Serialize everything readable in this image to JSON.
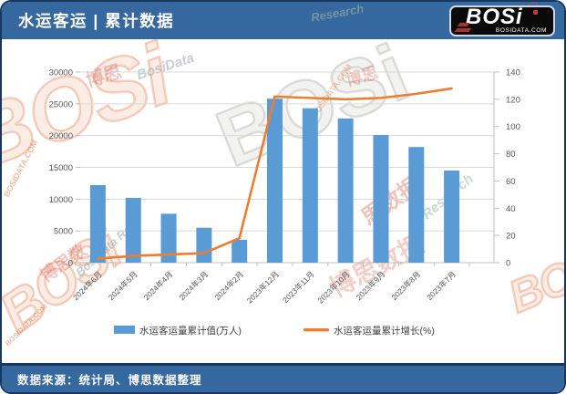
{
  "header": {
    "title": "水运客运 | 累计数据",
    "logo": {
      "text": "BOSi",
      "subtext": "BOSIDATA.COM"
    }
  },
  "footer": {
    "source": "数据来源：统计局、博思数据整理"
  },
  "colors": {
    "bar": "#5B9BD5",
    "line": "#ED7D31",
    "banner": "#35689E",
    "border": "#17375E",
    "grid": "#D9D9D9",
    "axis_line": "#BFBFBF",
    "axis_text": "#595959",
    "legend_text": "#404040"
  },
  "watermarks": [
    {
      "zone": "header",
      "cls": "wm-h1",
      "text": "Research"
    },
    {
      "zone": "header",
      "cls": "wm-h2",
      "text": "数据"
    },
    {
      "zone": "chart",
      "cls": "wm-c1 wm-big",
      "text": "BOSi"
    },
    {
      "zone": "chart",
      "cls": "wm-c2",
      "text": "BOSIDATA.COM"
    },
    {
      "zone": "chart",
      "cls": "wm-c3",
      "text": "博思"
    },
    {
      "zone": "chart",
      "cls": "wm-c4",
      "text": "BosiData"
    },
    {
      "zone": "chart",
      "cls": "wm-c5",
      "text": "BOSi"
    },
    {
      "zone": "chart",
      "cls": "wm-c6",
      "text": "BOSIDATA.COM"
    },
    {
      "zone": "chart",
      "cls": "wm-c7",
      "text": "博思"
    },
    {
      "zone": "chart",
      "cls": "wm-c8",
      "text": "思数据"
    },
    {
      "zone": "chart",
      "cls": "wm-c9",
      "text": "Research"
    },
    {
      "zone": "chart",
      "cls": "wm-c10 wm-big",
      "text": "BOSi"
    },
    {
      "zone": "chart",
      "cls": "wm-c11",
      "text": "BOSIDATA.COM"
    },
    {
      "zone": "chart",
      "cls": "wm-c12 wm-big",
      "text": "BOSi"
    },
    {
      "zone": "chart",
      "cls": "wm-c13",
      "text": "博思数据"
    },
    {
      "zone": "chart",
      "cls": "wm-c14",
      "text": "BosiData Rese"
    },
    {
      "zone": "chart",
      "cls": "wm-c15",
      "text": "博思数"
    }
  ],
  "chart_data": {
    "type": "combo-bar-line",
    "categories": [
      "2024年6月",
      "2024年5月",
      "2024年4月",
      "2024年3月",
      "2024年2月",
      "2023年12月",
      "2023年11月",
      "2023年10月",
      "2023年9月",
      "2023年8月",
      "2023年7月"
    ],
    "series": [
      {
        "name": "水运客运量累计值(万人)",
        "type": "bar",
        "axis": "left",
        "color": "#5B9BD5",
        "values": [
          12200,
          10200,
          7700,
          5500,
          3600,
          25800,
          24300,
          22700,
          20100,
          18200,
          14500
        ]
      },
      {
        "name": "水运客运量累计增长(%)",
        "type": "line",
        "axis": "right",
        "color": "#ED7D31",
        "values": [
          3,
          5,
          6,
          7,
          18,
          122,
          121,
          120,
          121,
          124,
          128
        ]
      }
    ],
    "left_axis": {
      "min": 0,
      "max": 30000,
      "ticks": [
        "0",
        "5000",
        "10000",
        "15000",
        "20000",
        "25000",
        "30000"
      ]
    },
    "right_axis": {
      "min": 0,
      "max": 140,
      "ticks": [
        "0",
        "20",
        "40",
        "60",
        "80",
        "100",
        "120",
        "140"
      ]
    },
    "grid": true,
    "legend_position": "bottom"
  }
}
